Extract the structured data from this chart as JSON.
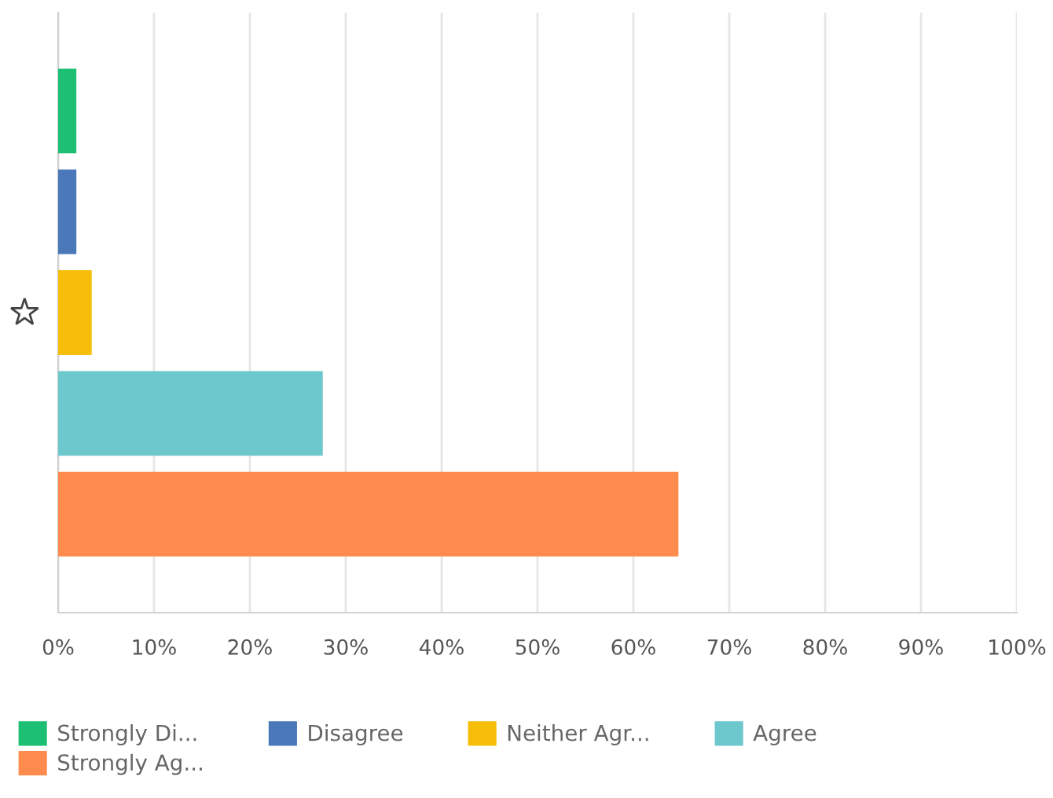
{
  "chart_data": {
    "type": "bar",
    "orientation": "horizontal",
    "categories": [
      null
    ],
    "series": [
      {
        "name": "Strongly Di...",
        "color": "#1dbf73",
        "values": [
          1.9
        ]
      },
      {
        "name": "Disagree",
        "color": "#4a78b8",
        "values": [
          1.9
        ]
      },
      {
        "name": "Neither Agr...",
        "color": "#f6bd0b",
        "values": [
          3.5
        ]
      },
      {
        "name": "Agree",
        "color": "#6cc8cc",
        "values": [
          27.6
        ]
      },
      {
        "name": "Strongly Ag...",
        "color": "#ff8b4f",
        "values": [
          64.7
        ]
      }
    ],
    "xlim": [
      0,
      100
    ],
    "xticks": [
      {
        "value": 0,
        "label": "0%"
      },
      {
        "value": 10,
        "label": "10%"
      },
      {
        "value": 20,
        "label": "20%"
      },
      {
        "value": 30,
        "label": "30%"
      },
      {
        "value": 40,
        "label": "40%"
      },
      {
        "value": 50,
        "label": "50%"
      },
      {
        "value": 60,
        "label": "60%"
      },
      {
        "value": 70,
        "label": "70%"
      },
      {
        "value": 80,
        "label": "80%"
      },
      {
        "value": 90,
        "label": "90%"
      },
      {
        "value": 100,
        "label": "100%"
      }
    ],
    "grid": "x",
    "legend": "bottom"
  }
}
